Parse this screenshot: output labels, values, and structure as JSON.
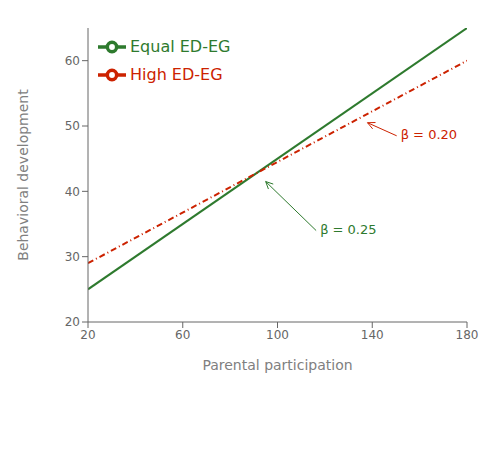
{
  "chart_data": {
    "type": "line",
    "title": "",
    "xlabel": "Parental participation",
    "ylabel": "Behavioral development",
    "x": [
      20,
      180
    ],
    "xlim": [
      20,
      180
    ],
    "ylim": [
      20,
      65
    ],
    "xticks": [
      20,
      60,
      100,
      140,
      180
    ],
    "yticks": [
      20,
      30,
      40,
      50,
      60
    ],
    "grid": false,
    "legend": "upper left",
    "series": [
      {
        "name": "Equal ED-EG",
        "color": "#2e7a2e",
        "line_style": "solid",
        "values": [
          25.0,
          65.0
        ]
      },
      {
        "name": "High ED-EG",
        "color": "#cc2200",
        "line_style": "dashdot",
        "values": [
          29.0,
          60.0
        ]
      }
    ],
    "annotations": [
      {
        "text": "β = 0.25",
        "xy": [
          95,
          41.5
        ],
        "xytext": [
          118,
          34
        ],
        "color": "#2e7a2e"
      },
      {
        "text": "β = 0.20",
        "xy": [
          138,
          50.5
        ],
        "xytext": [
          152,
          48.5
        ],
        "color": "#cc2200"
      }
    ]
  }
}
